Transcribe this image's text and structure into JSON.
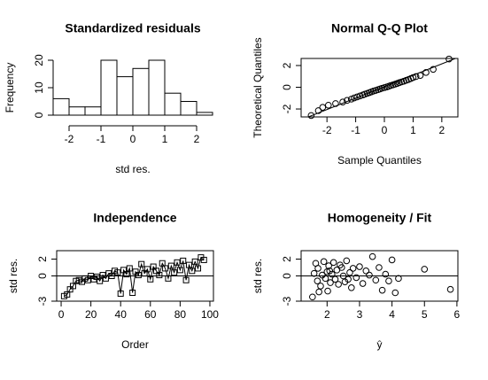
{
  "chart_data": [
    {
      "type": "histogram",
      "title": "Standardized residuals",
      "xlabel": "std res.",
      "ylabel": "Frequency",
      "bins": [
        -2.5,
        -2,
        -1.5,
        -1,
        -0.5,
        0,
        0.5,
        1,
        1.5,
        2,
        2.5
      ],
      "values": [
        6,
        3,
        3,
        20,
        14,
        17,
        20,
        8,
        5,
        1
      ],
      "color": "#ffffff",
      "xlim": [
        -2.5,
        2.5
      ],
      "ylim": [
        0,
        20
      ],
      "xticks": [
        -2,
        -1,
        0,
        1,
        2
      ],
      "yticks": [
        0,
        10,
        20
      ]
    },
    {
      "type": "scatter",
      "title": "Normal Q-Q Plot",
      "xlabel": "Sample Quantiles",
      "ylabel": "Theoretical Quantiles",
      "x": [
        -2.55,
        -2.3,
        -2.15,
        -1.95,
        -1.7,
        -1.45,
        -1.3,
        -1.15,
        -1.05,
        -0.95,
        -0.85,
        -0.75,
        -0.68,
        -0.6,
        -0.52,
        -0.45,
        -0.38,
        -0.3,
        -0.22,
        -0.15,
        -0.08,
        0.0,
        0.08,
        0.15,
        0.22,
        0.3,
        0.38,
        0.45,
        0.52,
        0.6,
        0.68,
        0.76,
        0.84,
        0.92,
        1.0,
        1.1,
        1.25,
        1.45,
        1.7,
        2.25
      ],
      "values": [
        -2.6,
        -2.15,
        -1.85,
        -1.65,
        -1.5,
        -1.36,
        -1.21,
        -1.09,
        -0.98,
        -0.89,
        -0.8,
        -0.71,
        -0.64,
        -0.56,
        -0.49,
        -0.42,
        -0.35,
        -0.29,
        -0.22,
        -0.16,
        -0.09,
        -0.03,
        0.03,
        0.09,
        0.16,
        0.22,
        0.29,
        0.35,
        0.42,
        0.49,
        0.56,
        0.64,
        0.71,
        0.8,
        0.89,
        0.98,
        1.09,
        1.36,
        1.65,
        2.6
      ],
      "marker": "circle",
      "ref_line": {
        "intercept": 0.05,
        "slope": 1.05
      },
      "xlim": [
        -2.9,
        2.56
      ],
      "ylim": [
        -2.73,
        2.65
      ],
      "xticks": [
        -2,
        -1,
        0,
        1,
        2
      ],
      "yticks": [
        -2,
        0,
        2
      ]
    },
    {
      "type": "line",
      "title": "Independence",
      "xlabel": "Order",
      "ylabel": "std res.",
      "x": [
        2,
        4,
        6,
        8,
        10,
        12,
        14,
        16,
        18,
        20,
        22,
        24,
        26,
        28,
        30,
        32,
        34,
        36,
        38,
        40,
        42,
        44,
        46,
        48,
        50,
        52,
        54,
        56,
        58,
        60,
        62,
        64,
        66,
        68,
        70,
        72,
        74,
        76,
        78,
        80,
        82,
        84,
        86,
        88,
        90,
        92,
        94,
        96
      ],
      "values": [
        -2.4,
        -2.2,
        -1.6,
        -1.2,
        -0.6,
        -0.5,
        -0.7,
        -0.3,
        -0.5,
        0.0,
        -0.4,
        -0.1,
        -0.6,
        0.1,
        -0.3,
        0.3,
        0.0,
        0.6,
        0.4,
        -2.1,
        0.7,
        0.2,
        0.9,
        -2.0,
        0.5,
        0.1,
        1.4,
        0.3,
        0.8,
        -0.4,
        1.1,
        0.6,
        0.1,
        1.5,
        0.9,
        -0.3,
        1.2,
        0.4,
        1.6,
        0.7,
        1.8,
        -0.5,
        1.3,
        0.6,
        1.7,
        0.9,
        2.2,
        1.9
      ],
      "marker": "square",
      "hline": 0,
      "xlim": [
        -3,
        102.4
      ],
      "ylim": [
        -3,
        3
      ],
      "xticks": [
        0,
        20,
        40,
        60,
        80,
        100
      ],
      "yticks": [
        -3,
        0,
        2
      ]
    },
    {
      "type": "scatter",
      "title": "Homogeneity / Fit",
      "xlabel": "ŷ",
      "ylabel": "std res.",
      "x": [
        1.55,
        1.6,
        1.65,
        1.7,
        1.72,
        1.8,
        1.85,
        1.9,
        1.95,
        2.0,
        2.02,
        2.05,
        2.1,
        2.15,
        2.2,
        2.25,
        2.3,
        2.35,
        2.4,
        2.5,
        2.55,
        2.6,
        2.7,
        2.75,
        2.8,
        2.9,
        3.0,
        3.1,
        3.2,
        3.3,
        3.4,
        3.5,
        3.6,
        3.7,
        3.8,
        3.9,
        4.0,
        4.1,
        4.2,
        5.0,
        5.8,
        1.75,
        2.08,
        2.45,
        2.65
      ],
      "values": [
        -2.5,
        0.3,
        1.5,
        -0.6,
        0.9,
        -1.2,
        0.1,
        1.7,
        -0.3,
        0.5,
        -1.8,
        1.2,
        -0.8,
        0.2,
        1.6,
        -0.4,
        0.7,
        -1.0,
        1.3,
        0.0,
        -0.7,
        1.8,
        0.4,
        -1.4,
        0.9,
        -0.2,
        1.1,
        -0.9,
        0.6,
        0.1,
        2.3,
        -0.5,
        1.0,
        -1.7,
        0.2,
        -0.6,
        1.9,
        -2.0,
        -0.3,
        0.8,
        -1.6,
        -1.9,
        0.6,
        1.0,
        -0.4
      ],
      "marker": "circle",
      "hline": 0,
      "xlim": [
        1.2,
        6.03
      ],
      "ylim": [
        -3,
        3
      ],
      "xticks": [
        2,
        3,
        4,
        5,
        6
      ],
      "yticks": [
        -3,
        0,
        2
      ]
    }
  ]
}
